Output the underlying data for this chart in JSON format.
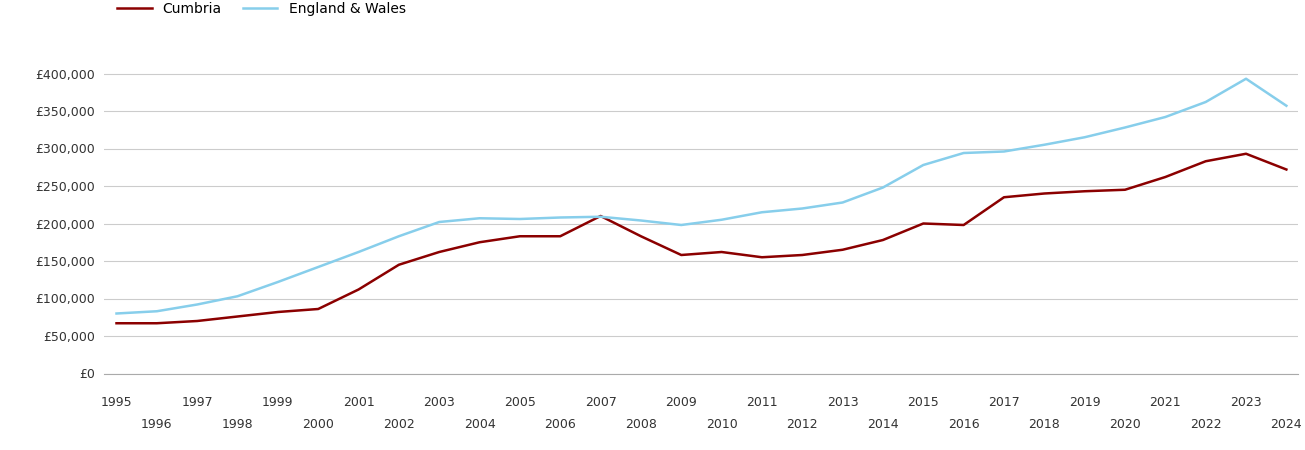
{
  "years": [
    1995,
    1996,
    1997,
    1998,
    1999,
    2000,
    2001,
    2002,
    2003,
    2004,
    2005,
    2006,
    2007,
    2008,
    2009,
    2010,
    2011,
    2012,
    2013,
    2014,
    2015,
    2016,
    2017,
    2018,
    2019,
    2020,
    2021,
    2022,
    2023,
    2024
  ],
  "cumbria": [
    67000,
    67000,
    70000,
    76000,
    82000,
    86000,
    112000,
    145000,
    162000,
    175000,
    183000,
    183000,
    210000,
    183000,
    158000,
    162000,
    155000,
    158000,
    165000,
    178000,
    200000,
    198000,
    235000,
    240000,
    243000,
    245000,
    262000,
    283000,
    293000,
    272000
  ],
  "england_wales": [
    80000,
    83000,
    92000,
    103000,
    122000,
    142000,
    162000,
    183000,
    202000,
    207000,
    206000,
    208000,
    209000,
    204000,
    198000,
    205000,
    215000,
    220000,
    228000,
    248000,
    278000,
    294000,
    296000,
    305000,
    315000,
    328000,
    342000,
    362000,
    393000,
    357000
  ],
  "cumbria_color": "#8B0000",
  "england_wales_color": "#87CEEB",
  "background_color": "#ffffff",
  "grid_color": "#cccccc",
  "ylim": [
    0,
    420000
  ],
  "yticks": [
    0,
    50000,
    100000,
    150000,
    200000,
    250000,
    300000,
    350000,
    400000
  ],
  "legend_cumbria": "Cumbria",
  "legend_ew": "England & Wales",
  "line_width": 1.8
}
